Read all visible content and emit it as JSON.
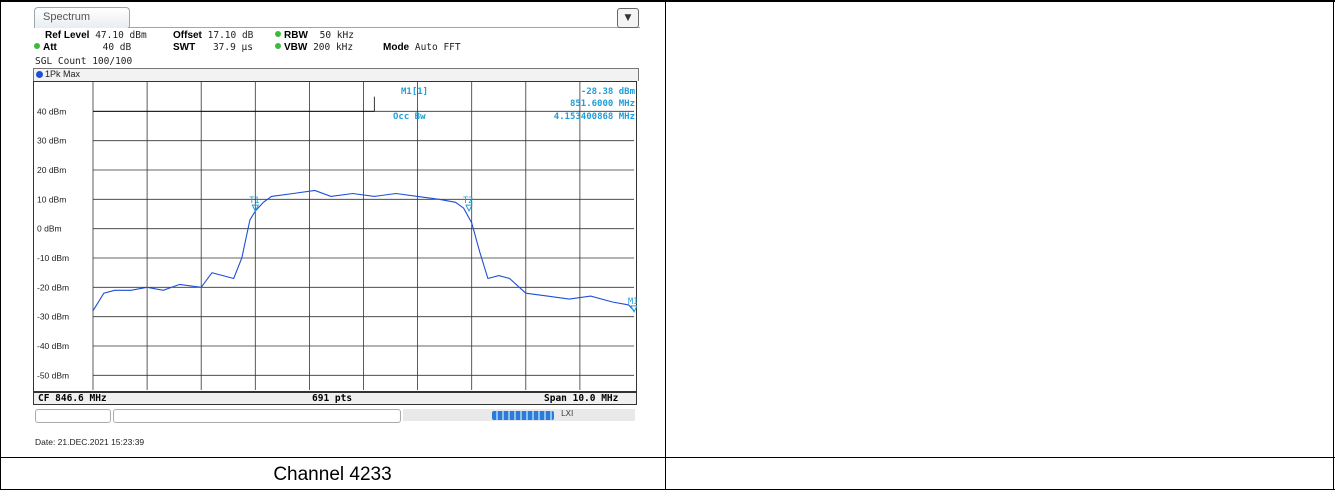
{
  "window": {
    "tab_label": "Spectrum",
    "corner_icon": "display-settings-icon"
  },
  "settings": {
    "ref_level_label": "Ref Level",
    "ref_level_value": "47.10 dBm",
    "offset_label": "Offset",
    "offset_value": "17.10 dB",
    "rbw_label": "RBW",
    "rbw_value": "50 kHz",
    "att_label": "Att",
    "att_value": "40 dB",
    "swt_label": "SWT",
    "swt_value": "37.9 µs",
    "vbw_label": "VBW",
    "vbw_value": "200 kHz",
    "mode_label": "Mode",
    "mode_value": "Auto FFT",
    "sgl_count": "SGL Count 100/100",
    "indicator_color": "#3cba3c"
  },
  "trace": {
    "label": "1Pk Max",
    "color": "#1f4fd6"
  },
  "marker_info": {
    "m1_label": "M1[1]",
    "m1_level": "-28.38 dBm",
    "m1_freq": "851.6000 MHz",
    "occbw_label": "Occ Bw",
    "occbw_value": "4.153400868 MHz",
    "text_color": "#1e9fd9"
  },
  "markers": {
    "t1": "T1",
    "t2": "T2",
    "m1": "M1"
  },
  "status": {
    "cf": "CF 846.6 MHz",
    "points": "691 pts",
    "span": "Span 10.0 MHz"
  },
  "footer": {
    "date": "Date: 21.DEC.2021  15:23:39"
  },
  "caption": "Channel 4233",
  "chart_data": {
    "type": "line",
    "title": "",
    "xlabel": "",
    "ylabel": "",
    "x_unit": "MHz",
    "x_center": 846.6,
    "x_span": 10.0,
    "xlim": [
      841.6,
      851.6
    ],
    "ylim": [
      -55,
      50
    ],
    "grid": true,
    "y_ticks": [
      "40 dBm",
      "30 dBm",
      "20 dBm",
      "10 dBm",
      "0 dBm",
      "-10 dBm",
      "-20 dBm",
      "-30 dBm",
      "-40 dBm",
      "-50 dBm"
    ],
    "y_tick_values": [
      40,
      30,
      20,
      10,
      0,
      -10,
      -20,
      -30,
      -40,
      -50
    ],
    "reference_line_dbm": 40,
    "series": [
      {
        "name": "1Pk Max",
        "x": [
          841.6,
          841.8,
          842.0,
          842.3,
          842.6,
          842.9,
          843.2,
          843.6,
          843.8,
          844.2,
          844.35,
          844.5,
          844.6,
          844.75,
          844.9,
          845.3,
          845.7,
          846.0,
          846.4,
          846.8,
          847.2,
          847.6,
          848.0,
          848.3,
          848.45,
          848.6,
          848.75,
          848.9,
          849.1,
          849.3,
          849.6,
          850.0,
          850.4,
          850.8,
          851.2,
          851.5,
          851.6
        ],
        "y": [
          -28,
          -22,
          -21,
          -21,
          -20,
          -21,
          -19,
          -20,
          -15,
          -17,
          -10,
          3,
          6,
          9,
          11,
          12,
          13,
          11,
          12,
          11,
          12,
          11,
          10,
          9,
          7,
          2,
          -8,
          -17,
          -16,
          -17,
          -22,
          -23,
          -24,
          -23,
          -25,
          -26,
          -28
        ]
      }
    ],
    "markers": [
      {
        "name": "T1",
        "x": 844.6,
        "y": 6
      },
      {
        "name": "T2",
        "x": 848.55,
        "y": 6
      },
      {
        "name": "M1",
        "x": 851.6,
        "y": -28.38
      }
    ]
  }
}
